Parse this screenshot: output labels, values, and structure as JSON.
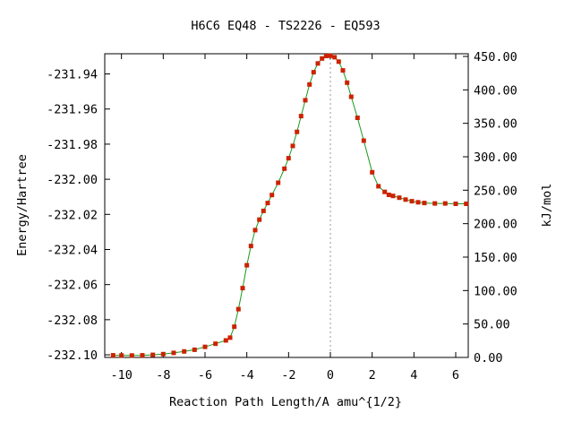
{
  "chart_data": {
    "type": "line",
    "title": "H6C6   EQ48 - TS2226 - EQ593",
    "xlabel": "Reaction Path Length/A amu^{1/2}",
    "ylabel": "Energy/Hartree",
    "y2label": "kJ/mol",
    "xlim": [
      -10.8,
      6.6
    ],
    "ylim": [
      -232.1015,
      -231.9285
    ],
    "y2lim": [
      0,
      454
    ],
    "grid": false,
    "legend": "none",
    "x_ticks": [
      "-10",
      "-8",
      "-6",
      "-4",
      "-2",
      "0",
      "2",
      "4",
      "6"
    ],
    "y_ticks": [
      "-231.94",
      "-231.96",
      "-231.98",
      "-232.00",
      "-232.02",
      "-232.04",
      "-232.06",
      "-232.08",
      "-232.10"
    ],
    "y2_ticks": [
      "450.00",
      "400.00",
      "350.00",
      "300.00",
      "250.00",
      "200.00",
      "150.00",
      "100.00",
      "50.00",
      "0.00"
    ],
    "x_tick_values": [
      -10,
      -8,
      -6,
      -4,
      -2,
      0,
      2,
      4,
      6
    ],
    "y_tick_values": [
      -231.94,
      -231.96,
      -231.98,
      -232.0,
      -232.02,
      -232.04,
      -232.06,
      -232.08,
      -232.1
    ],
    "y2_tick_values": [
      450,
      400,
      350,
      300,
      250,
      200,
      150,
      100,
      50,
      0
    ],
    "marker_x": 0,
    "colors": {
      "line": "#1a9a1a",
      "points": "#cc2200",
      "marker_line": "#999999"
    },
    "series": [
      {
        "x": [
          -10.4,
          -10.0,
          -9.5,
          -9.0,
          -8.5,
          -8.0,
          -7.5,
          -7.0,
          -6.5,
          -6.0,
          -5.5,
          -5.0,
          -4.8,
          -4.6,
          -4.4,
          -4.2,
          -4.0,
          -3.8,
          -3.6,
          -3.4,
          -3.2,
          -3.0,
          -2.8,
          -2.5,
          -2.2,
          -2.0,
          -1.8,
          -1.6,
          -1.4,
          -1.2,
          -1.0,
          -0.8,
          -0.6,
          -0.4,
          -0.2,
          0.0,
          0.2,
          0.4,
          0.6,
          0.8,
          1.0,
          1.3,
          1.6,
          2.0,
          2.3,
          2.6,
          2.8,
          3.0,
          3.3,
          3.6,
          3.9,
          4.2,
          4.5,
          5.0,
          5.5,
          6.0,
          6.5
        ],
        "y": [
          -232.1003,
          -232.1004,
          -232.1004,
          -232.1003,
          -232.1,
          -232.0996,
          -232.0989,
          -232.0981,
          -232.0971,
          -232.0955,
          -232.0937,
          -232.0918,
          -232.0902,
          -232.084,
          -232.074,
          -232.062,
          -232.049,
          -232.038,
          -232.029,
          -232.023,
          -232.018,
          -232.0135,
          -232.009,
          -232.002,
          -231.994,
          -231.988,
          -231.981,
          -231.973,
          -231.964,
          -231.955,
          -231.946,
          -231.939,
          -231.934,
          -231.9312,
          -231.9298,
          -231.9296,
          -231.9305,
          -231.933,
          -231.938,
          -231.945,
          -231.953,
          -231.965,
          -231.978,
          -231.996,
          -232.004,
          -232.0072,
          -232.0089,
          -232.0095,
          -232.0105,
          -232.0116,
          -232.0125,
          -232.0131,
          -232.0135,
          -232.0138,
          -232.0138,
          -232.014,
          -232.014
        ]
      }
    ]
  }
}
